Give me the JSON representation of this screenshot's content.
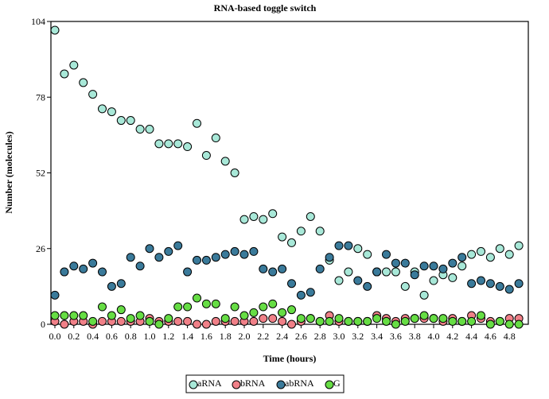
{
  "chart_data": {
    "type": "scatter",
    "title": "RNA-based toggle switch",
    "xlabel": "Time (hours)",
    "ylabel": "Number (molecules)",
    "xlim": [
      0,
      5.0
    ],
    "ylim": [
      0,
      104
    ],
    "x_ticks": [
      "0.0",
      "0.2",
      "0.4",
      "0.6",
      "0.8",
      "1.0",
      "1.2",
      "1.4",
      "1.6",
      "1.8",
      "2.0",
      "2.2",
      "2.4",
      "2.6",
      "2.8",
      "3.0",
      "3.2",
      "3.4",
      "3.6",
      "3.8",
      "4.0",
      "4.2",
      "4.4",
      "4.6",
      "4.8"
    ],
    "y_ticks": [
      "0",
      "26",
      "52",
      "78",
      "104"
    ],
    "grid": false,
    "legend_position": "bottom-center",
    "x": [
      0.0,
      0.1,
      0.2,
      0.3,
      0.4,
      0.5,
      0.6,
      0.7,
      0.8,
      0.9,
      1.0,
      1.1,
      1.2,
      1.3,
      1.4,
      1.5,
      1.6,
      1.7,
      1.8,
      1.9,
      2.0,
      2.1,
      2.2,
      2.3,
      2.4,
      2.5,
      2.6,
      2.7,
      2.8,
      2.9,
      3.0,
      3.1,
      3.2,
      3.3,
      3.4,
      3.5,
      3.6,
      3.7,
      3.8,
      3.9,
      4.0,
      4.1,
      4.2,
      4.3,
      4.4,
      4.5,
      4.6,
      4.7,
      4.8,
      4.9
    ],
    "series": [
      {
        "name": "aRNA",
        "color": "#a8e8d8",
        "values": [
          101,
          86,
          89,
          83,
          79,
          74,
          73,
          70,
          70,
          67,
          67,
          62,
          62,
          62,
          61,
          69,
          58,
          64,
          56,
          52,
          36,
          37,
          36,
          38,
          30,
          28,
          32,
          37,
          32,
          22,
          15,
          18,
          26,
          24,
          18,
          18,
          18,
          13,
          18,
          10,
          15,
          17,
          16,
          20,
          24,
          25,
          23,
          26,
          24,
          27
        ]
      },
      {
        "name": "bRNA",
        "color": "#f08088",
        "values": [
          1,
          0,
          1,
          1,
          0,
          1,
          1,
          1,
          1,
          1,
          2,
          1,
          1,
          1,
          1,
          0,
          0,
          1,
          1,
          1,
          1,
          1,
          2,
          2,
          1,
          0,
          1,
          2,
          1,
          3,
          1,
          1,
          1,
          1,
          3,
          2,
          1,
          2,
          2,
          2,
          2,
          1,
          2,
          1,
          3,
          2,
          1,
          1,
          2,
          2
        ]
      },
      {
        "name": "abRNA",
        "color": "#3a7a9a",
        "values": [
          10,
          18,
          20,
          19,
          21,
          18,
          13,
          14,
          23,
          20,
          26,
          23,
          25,
          27,
          18,
          22,
          22,
          23,
          24,
          25,
          24,
          25,
          19,
          18,
          19,
          14,
          10,
          11,
          19,
          23,
          27,
          27,
          15,
          13,
          18,
          24,
          21,
          21,
          17,
          20,
          20,
          19,
          21,
          23,
          14,
          15,
          14,
          13,
          12,
          14
        ]
      },
      {
        "name": "G",
        "color": "#66dd44",
        "values": [
          3,
          3,
          3,
          3,
          1,
          6,
          3,
          5,
          2,
          3,
          1,
          0,
          2,
          6,
          6,
          9,
          7,
          7,
          2,
          6,
          3,
          4,
          6,
          7,
          4,
          5,
          2,
          2,
          1,
          1,
          2,
          1,
          1,
          1,
          2,
          1,
          0,
          1,
          2,
          3,
          2,
          2,
          1,
          1,
          1,
          3,
          0,
          1,
          0,
          0
        ]
      }
    ]
  }
}
